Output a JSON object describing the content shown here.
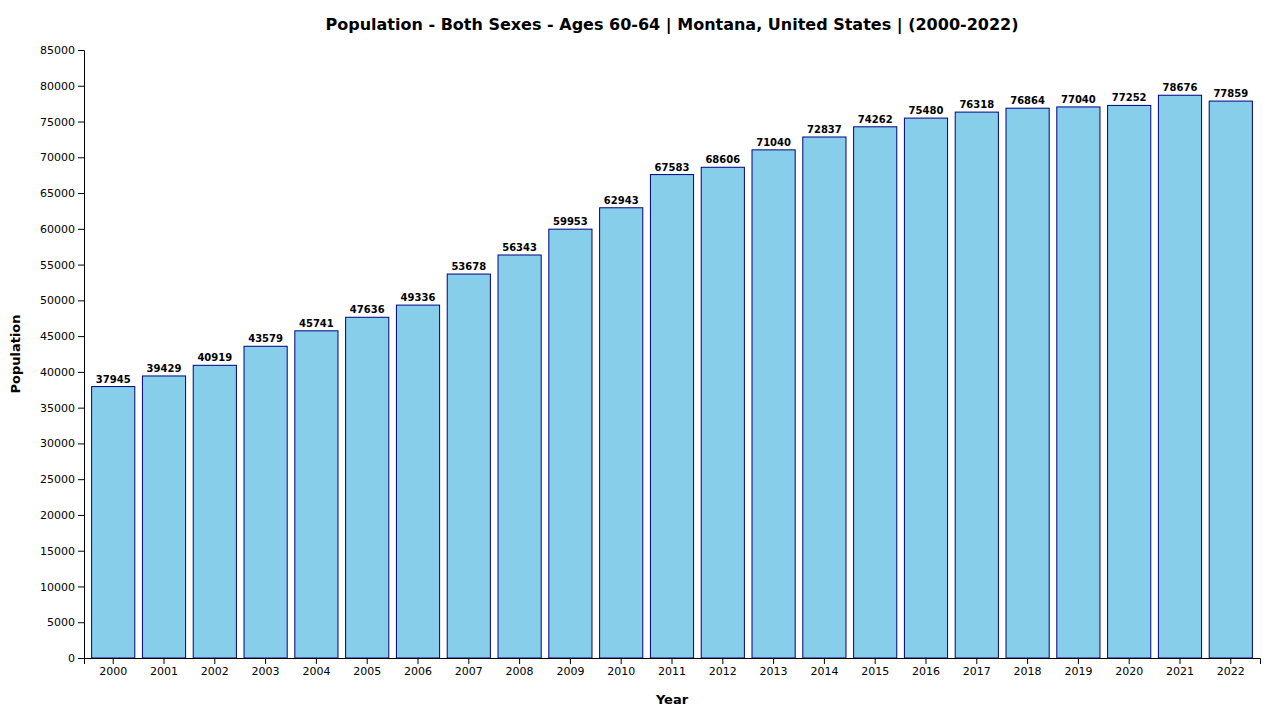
{
  "chart_data": {
    "type": "bar",
    "title": "Population - Both Sexes - Ages 60-64 | Montana, United States |  (2000-2022)",
    "xlabel": "Year",
    "ylabel": "Population",
    "categories": [
      "2000",
      "2001",
      "2002",
      "2003",
      "2004",
      "2005",
      "2006",
      "2007",
      "2008",
      "2009",
      "2010",
      "2011",
      "2012",
      "2013",
      "2014",
      "2015",
      "2016",
      "2017",
      "2018",
      "2019",
      "2020",
      "2021",
      "2022"
    ],
    "values": [
      37945,
      39429,
      40919,
      43579,
      45741,
      47636,
      49336,
      53678,
      56343,
      59953,
      62943,
      67583,
      68606,
      71040,
      72837,
      74262,
      75480,
      76318,
      76864,
      77040,
      77252,
      78676,
      77859
    ],
    "color": "#87CEEB",
    "ylim": [
      0,
      85000
    ],
    "yticks": [
      0,
      5000,
      10000,
      15000,
      20000,
      25000,
      30000,
      35000,
      40000,
      45000,
      50000,
      55000,
      60000,
      65000,
      70000,
      75000,
      80000,
      85000
    ],
    "grid": false,
    "data_labels": true
  }
}
